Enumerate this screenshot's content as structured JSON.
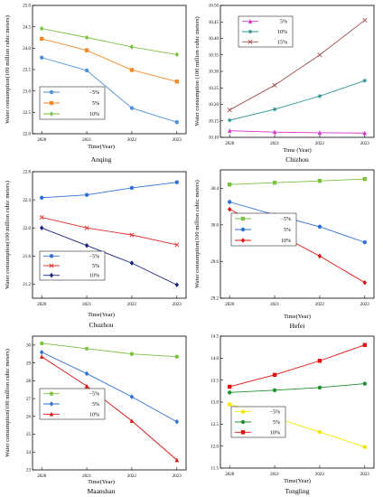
{
  "chart_data": [
    {
      "type": "line",
      "title": "Anqing",
      "xlabel": "Time(Year)",
      "ylabel": "Water consumption(100 million cubic meters)",
      "x": [
        "2020",
        "2021",
        "2022",
        "2023"
      ],
      "ylim": [
        22.0,
        25.0
      ],
      "yticks": [
        "22.0",
        "22.5",
        "23.0",
        "23.5",
        "24.0",
        "24.5",
        "25.0"
      ],
      "legend": "bottom-left",
      "series": [
        {
          "name": "−5%",
          "values": [
            23.78,
            23.48,
            22.6,
            22.27
          ],
          "color": "#4f8fd6",
          "marker": "circle"
        },
        {
          "name": "5%",
          "values": [
            24.22,
            23.95,
            23.49,
            23.22
          ],
          "color": "#f28a2a",
          "marker": "square"
        },
        {
          "name": "10%",
          "values": [
            24.46,
            24.25,
            24.03,
            23.85
          ],
          "color": "#7bc142",
          "marker": "diamond"
        }
      ]
    },
    {
      "type": "line",
      "title": "Chizhou",
      "xlabel": "Time (Year)",
      "ylabel": "Water consumption (100 million cubic meters)",
      "x": [
        "2020",
        "2021",
        "2022",
        "2023"
      ],
      "ylim": [
        10.1,
        10.5
      ],
      "yticks": [
        "10.10",
        "10.15",
        "10.20",
        "10.25",
        "10.30",
        "10.35",
        "10.40",
        "10.45",
        "10.50"
      ],
      "legend": "top-left",
      "series": [
        {
          "name": "5%",
          "values": [
            10.12,
            10.116,
            10.114,
            10.113
          ],
          "color": "#d633c9",
          "marker": "triangle"
        },
        {
          "name": "10%",
          "values": [
            10.152,
            10.185,
            10.225,
            10.272
          ],
          "color": "#2a8f8f",
          "marker": "star"
        },
        {
          "name": "15%",
          "values": [
            10.183,
            10.258,
            10.35,
            10.455
          ],
          "color": "#a05050",
          "marker": "x"
        }
      ]
    },
    {
      "type": "line",
      "title": "Chuzhou",
      "xlabel": "Time(Year)",
      "ylabel": "Water consumption(100 million cubic meters)",
      "x": [
        "2020",
        "2021",
        "2022",
        "2023"
      ],
      "ylim": [
        21.0,
        22.8
      ],
      "yticks": [
        "21.2",
        "21.6",
        "22.0",
        "22.4",
        "22.8"
      ],
      "legend": "bottom-left",
      "series": [
        {
          "name": "−5%",
          "values": [
            22.43,
            22.47,
            22.57,
            22.65
          ],
          "color": "#2f6fd6",
          "marker": "circle"
        },
        {
          "name": "5%",
          "values": [
            22.15,
            22.0,
            21.9,
            21.76
          ],
          "color": "#e03030",
          "marker": "x"
        },
        {
          "name": "10%",
          "values": [
            22.0,
            21.75,
            21.5,
            21.19
          ],
          "color": "#1a237e",
          "marker": "diamond"
        }
      ]
    },
    {
      "type": "line",
      "title": "Hefei",
      "xlabel": "Time(Year)",
      "ylabel": "Water consumption(100 million cubic meters)",
      "x": [
        "2020",
        "2021",
        "2022",
        "2023"
      ],
      "ylim": [
        29.2,
        30.6
      ],
      "yticks": [
        "29.2",
        "29.6",
        "30.0",
        "30.4"
      ],
      "legend": "middle-left",
      "series": [
        {
          "name": "−5%",
          "values": [
            30.44,
            30.46,
            30.48,
            30.5
          ],
          "color": "#7bc142",
          "marker": "square"
        },
        {
          "name": "5%",
          "values": [
            30.25,
            30.11,
            29.98,
            29.81
          ],
          "color": "#2f6fd6",
          "marker": "circle"
        },
        {
          "name": "10%",
          "values": [
            30.17,
            29.92,
            29.66,
            29.37
          ],
          "color": "#e01010",
          "marker": "diamond"
        }
      ]
    },
    {
      "type": "line",
      "title": "Maanshan",
      "xlabel": "Time(Year)",
      "ylabel": "Water consumption(100 million cubic meters)",
      "x": [
        "2020",
        "2021",
        "2022",
        "2023"
      ],
      "ylim": [
        23.0,
        30.5
      ],
      "yticks": [
        "23",
        "24",
        "25",
        "26",
        "27",
        "28",
        "29",
        "30"
      ],
      "legend": "middle-left",
      "series": [
        {
          "name": "−5%",
          "values": [
            30.1,
            29.8,
            29.5,
            29.35
          ],
          "color": "#7bc142",
          "marker": "circle"
        },
        {
          "name": "5%",
          "values": [
            29.6,
            28.4,
            27.1,
            25.7
          ],
          "color": "#2f6fd6",
          "marker": "diamond"
        },
        {
          "name": "10%",
          "values": [
            29.35,
            27.7,
            25.75,
            23.55
          ],
          "color": "#e01010",
          "marker": "triangle"
        }
      ]
    },
    {
      "type": "line",
      "title": "Tongling",
      "xlabel": "Time(Year)",
      "ylabel": "",
      "x": [
        "2020",
        "2021",
        "2022",
        "2023"
      ],
      "ylim": [
        11.5,
        14.5
      ],
      "yticks": [
        "11.5",
        "12.0",
        "12.5",
        "13.0",
        "13.5",
        "14.0",
        "14.5"
      ],
      "legend": "bottom-left",
      "series": [
        {
          "name": "−5%",
          "values": [
            12.95,
            12.65,
            12.32,
            11.98
          ],
          "color": "#f2e600",
          "marker": "circle"
        },
        {
          "name": "5%",
          "values": [
            13.22,
            13.27,
            13.33,
            13.42
          ],
          "color": "#1f8f2f",
          "marker": "circle"
        },
        {
          "name": "10%",
          "values": [
            13.35,
            13.62,
            13.94,
            14.3
          ],
          "color": "#e01010",
          "marker": "square"
        }
      ]
    }
  ]
}
